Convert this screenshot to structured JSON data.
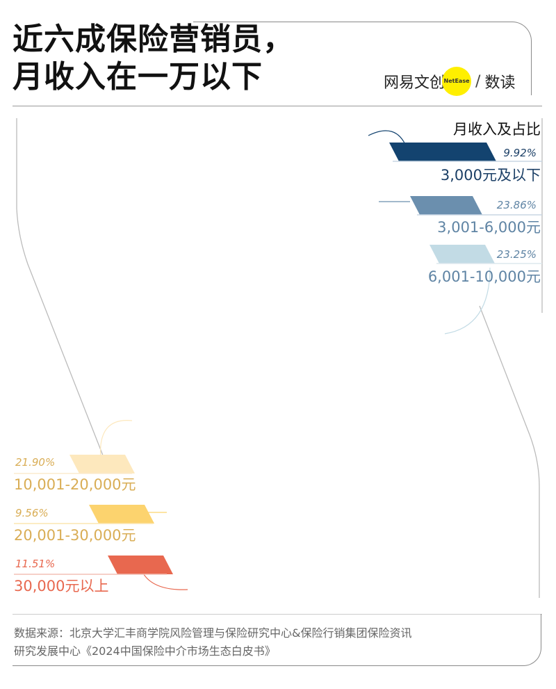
{
  "header": {
    "title_line1": "近六成保险营销员，",
    "title_line2": "月收入在一万以下",
    "logo_text": "网易文创",
    "logo_badge": "NetEase",
    "logo_slash": "/",
    "logo_section": "数读"
  },
  "legend": {
    "title": "月收入及占比"
  },
  "colors": {
    "band1": "#13436f",
    "band2": "#6b8fae",
    "band3": "#c2dbe5",
    "band4": "#fde8bd",
    "band5": "#fcd36e",
    "band6": "#e8684f"
  },
  "chart_data": {
    "type": "pictogram",
    "title": "近六成保险营销员，月收入在一万以下",
    "legend_title": "月收入及占比",
    "unit_total": 100,
    "grid": {
      "rows": 10,
      "cols": 10
    },
    "categories": [
      "3,000元及以下",
      "3,001-6,000元",
      "6,001-10,000元",
      "10,001-20,000元",
      "20,001-30,000元",
      "30,000元以上"
    ],
    "values": [
      9.92,
      23.86,
      23.25,
      21.9,
      9.56,
      11.51
    ],
    "series": [
      {
        "name": "3,000元及以下",
        "value": 9.92,
        "label": "9.92%",
        "color": "#13436f"
      },
      {
        "name": "3,001-6,000元",
        "value": 23.86,
        "label": "23.86%",
        "color": "#6b8fae"
      },
      {
        "name": "6,001-10,000元",
        "value": 23.25,
        "label": "23.25%",
        "color": "#c2dbe5"
      },
      {
        "name": "10,001-20,000元",
        "value": 21.9,
        "label": "21.90%",
        "color": "#fde8bd"
      },
      {
        "name": "20,001-30,000元",
        "value": 9.56,
        "label": "9.56%",
        "color": "#fcd36e"
      },
      {
        "name": "30,000元以上",
        "value": 11.51,
        "label": "11.51%",
        "color": "#e8684f"
      }
    ],
    "legend_labels": [
      {
        "pct": "9.92%",
        "range": "3,000元及以下",
        "text_color": "#1b3f66"
      },
      {
        "pct": "23.86%",
        "range": "3,001-6,000元",
        "text_color": "#5f84a4"
      },
      {
        "pct": "23.25%",
        "range": "6,001-10,000元",
        "text_color": "#5f84a4"
      },
      {
        "pct": "21.90%",
        "range": "10,001-20,000元",
        "text_color": "#d9ad55"
      },
      {
        "pct": "9.56%",
        "range": "20,001-30,000元",
        "text_color": "#d9ad55"
      },
      {
        "pct": "11.51%",
        "range": "30,000元以上",
        "text_color": "#e8684f"
      }
    ]
  },
  "footer": {
    "source_line1": "数据来源：北京大学汇丰商学院风险管理与保险研究中心&保险行销集团保险资讯",
    "source_line2": "研究发展中心《2024中国保险中介市场生态白皮书》"
  }
}
